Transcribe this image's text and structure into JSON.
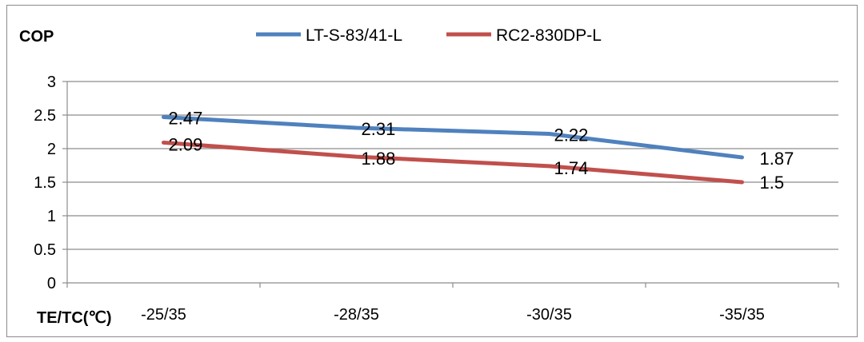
{
  "chart_data": {
    "type": "line",
    "ylabel": "COP",
    "xlabel": "TE/TC(℃)",
    "categories": [
      "-25/35",
      "-28/35",
      "-30/35",
      "-35/35"
    ],
    "ylim": [
      0,
      3
    ],
    "yticks": [
      0,
      0.5,
      1,
      1.5,
      2,
      2.5,
      3
    ],
    "ytick_labels": [
      "0",
      "0.5",
      "1",
      "1.5",
      "2",
      "2.5",
      "3"
    ],
    "grid": true,
    "legend_position": "top",
    "series": [
      {
        "name": "LT-S-83/41-L",
        "color": "#4f81bd",
        "values": [
          2.47,
          2.31,
          2.22,
          1.87
        ],
        "labels": [
          "2.47",
          "2.31",
          "2.22",
          "1.87"
        ]
      },
      {
        "name": "RC2-830DP-L",
        "color": "#c0504d",
        "values": [
          2.09,
          1.88,
          1.74,
          1.5
        ],
        "labels": [
          "2.09",
          "1.88",
          "1.74",
          "1.5"
        ]
      }
    ]
  }
}
